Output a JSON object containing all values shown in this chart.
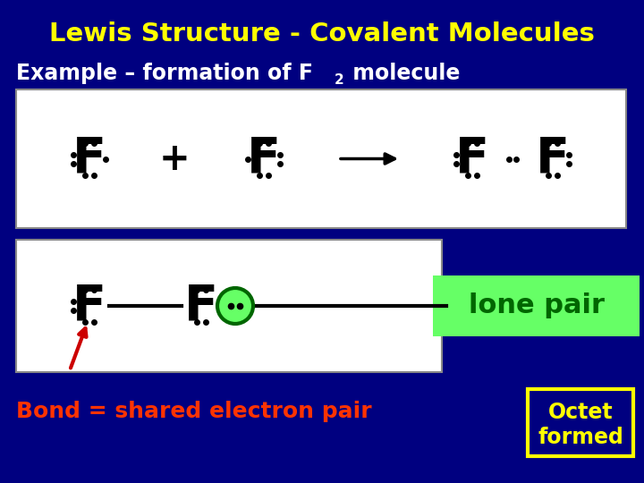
{
  "bg_color": "#000080",
  "title_text": "Lewis Structure - Covalent Molecules",
  "title_color": "#FFFF00",
  "subtitle_color": "#FFFFFF",
  "box1_bg": "#FFFFFF",
  "box2_bg": "#FFFFFF",
  "lone_pair_box_color": "#66FF66",
  "lone_pair_text_color": "#006600",
  "lone_pair_text": "lone pair",
  "bond_label": "Bond = shared electron pair",
  "bond_label_color": "#FF3300",
  "octet_text1": "Octet",
  "octet_text2": "formed",
  "octet_text_color": "#FFFF00",
  "octet_box_color": "#FFFF00",
  "arrow_color": "#CC0000",
  "circle_edge_color": "#006600",
  "circle_fill": "#66FF66",
  "dot_color": "#000000",
  "F_color": "#000000"
}
